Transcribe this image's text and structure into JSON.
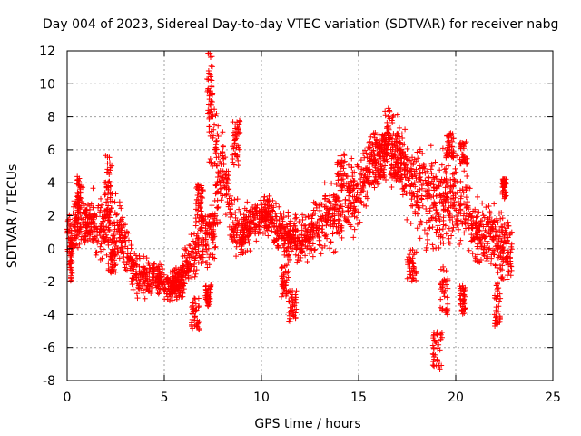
{
  "chart_data": {
    "type": "scatter",
    "title": "Day 004 of 2023, Sidereal Day-to-day VTEC variation (SDTVAR) for receiver nabg",
    "xlabel": "GPS time / hours",
    "ylabel": "SDTVAR / TECUs",
    "xlim": [
      0,
      25
    ],
    "ylim": [
      -8,
      12
    ],
    "xticks": [
      0,
      5,
      10,
      15,
      20,
      25
    ],
    "yticks": [
      -8,
      -6,
      -4,
      -2,
      0,
      2,
      4,
      6,
      8,
      10,
      12
    ],
    "grid": true,
    "marker": "+",
    "color": "#ff0000",
    "series": [
      {
        "name": "SDTVAR",
        "trend": {
          "x": [
            0,
            0.5,
            1.0,
            1.5,
            2.0,
            2.5,
            3.0,
            3.5,
            4.0,
            4.5,
            5.0,
            5.5,
            6.0,
            6.5,
            7.0,
            7.5,
            8.0,
            8.5,
            9.0,
            9.5,
            10.0,
            10.5,
            11.0,
            11.5,
            12.0,
            12.5,
            13.0,
            13.5,
            14.0,
            14.5,
            15.0,
            15.5,
            16.0,
            16.5,
            17.0,
            17.5,
            18.0,
            18.5,
            19.0,
            19.5,
            20.0,
            20.5,
            21.0,
            21.5,
            22.0,
            22.5,
            22.9
          ],
          "y": [
            1.0,
            1.5,
            1.6,
            1.3,
            1.0,
            1.5,
            0.0,
            -1.5,
            -2.0,
            -1.5,
            -2.2,
            -2.3,
            -1.5,
            -0.5,
            0.8,
            1.2,
            5.5,
            1.5,
            1.0,
            1.5,
            2.0,
            2.0,
            1.0,
            0.5,
            0.5,
            1.0,
            1.5,
            2.0,
            2.5,
            3.0,
            3.5,
            5.0,
            5.5,
            6.0,
            5.5,
            4.5,
            4.0,
            3.0,
            2.5,
            3.0,
            3.0,
            2.5,
            1.0,
            1.0,
            0.5,
            0.0,
            -0.5
          ],
          "spread": [
            0.8,
            1.2,
            1.0,
            1.3,
            1.5,
            1.6,
            1.2,
            0.9,
            0.8,
            0.7,
            0.6,
            0.6,
            0.8,
            1.0,
            1.3,
            1.5,
            1.3,
            1.0,
            0.9,
            0.8,
            0.7,
            0.8,
            1.0,
            1.0,
            1.0,
            1.0,
            1.2,
            1.4,
            1.6,
            1.6,
            1.4,
            1.2,
            1.2,
            1.2,
            1.4,
            1.6,
            1.8,
            2.0,
            2.0,
            2.0,
            1.8,
            1.6,
            1.4,
            1.3,
            1.4,
            1.5,
            1.2
          ]
        },
        "bursts": [
          {
            "x": [
              0.1,
              0.3
            ],
            "y": [
              -2.0,
              0.5
            ]
          },
          {
            "x": [
              0.5,
              0.7
            ],
            "y": [
              2.5,
              4.5
            ]
          },
          {
            "x": [
              1.9,
              2.3
            ],
            "y": [
              2.0,
              5.8
            ]
          },
          {
            "x": [
              2.2,
              2.5
            ],
            "y": [
              -1.5,
              0.5
            ]
          },
          {
            "x": [
              5.3,
              6.0
            ],
            "y": [
              -3.0,
              -1.2
            ]
          },
          {
            "x": [
              6.4,
              6.8
            ],
            "y": [
              -5.0,
              -3.0
            ]
          },
          {
            "x": [
              6.6,
              7.0
            ],
            "y": [
              1.5,
              4.0
            ]
          },
          {
            "x": [
              7.2,
              7.5
            ],
            "y": [
              8.0,
              11.9
            ]
          },
          {
            "x": [
              7.3,
              7.8
            ],
            "y": [
              5.0,
              8.5
            ]
          },
          {
            "x": [
              7.1,
              7.4
            ],
            "y": [
              -3.5,
              -2.2
            ]
          },
          {
            "x": [
              8.5,
              8.9
            ],
            "y": [
              5.0,
              8.0
            ]
          },
          {
            "x": [
              11.0,
              11.4
            ],
            "y": [
              -3.0,
              -1.0
            ]
          },
          {
            "x": [
              11.4,
              11.8
            ],
            "y": [
              -4.5,
              -2.5
            ]
          },
          {
            "x": [
              13.9,
              14.3
            ],
            "y": [
              3.5,
              5.8
            ]
          },
          {
            "x": [
              15.8,
              16.2
            ],
            "y": [
              4.0,
              6.5
            ]
          },
          {
            "x": [
              16.3,
              16.8
            ],
            "y": [
              6.0,
              8.6
            ]
          },
          {
            "x": [
              16.8,
              17.2
            ],
            "y": [
              4.0,
              7.0
            ]
          },
          {
            "x": [
              17.5,
              18.0
            ],
            "y": [
              -2.0,
              0.0
            ]
          },
          {
            "x": [
              18.8,
              19.3
            ],
            "y": [
              -7.4,
              -5.0
            ]
          },
          {
            "x": [
              19.2,
              19.6
            ],
            "y": [
              -4.0,
              -1.0
            ]
          },
          {
            "x": [
              19.5,
              19.9
            ],
            "y": [
              5.5,
              7.1
            ]
          },
          {
            "x": [
              20.2,
              20.6
            ],
            "y": [
              5.0,
              6.5
            ]
          },
          {
            "x": [
              20.2,
              20.5
            ],
            "y": [
              -4.0,
              -2.0
            ]
          },
          {
            "x": [
              22.0,
              22.3
            ],
            "y": [
              -4.8,
              -2.0
            ]
          },
          {
            "x": [
              22.4,
              22.6
            ],
            "y": [
              3.0,
              4.3
            ]
          }
        ]
      }
    ]
  }
}
